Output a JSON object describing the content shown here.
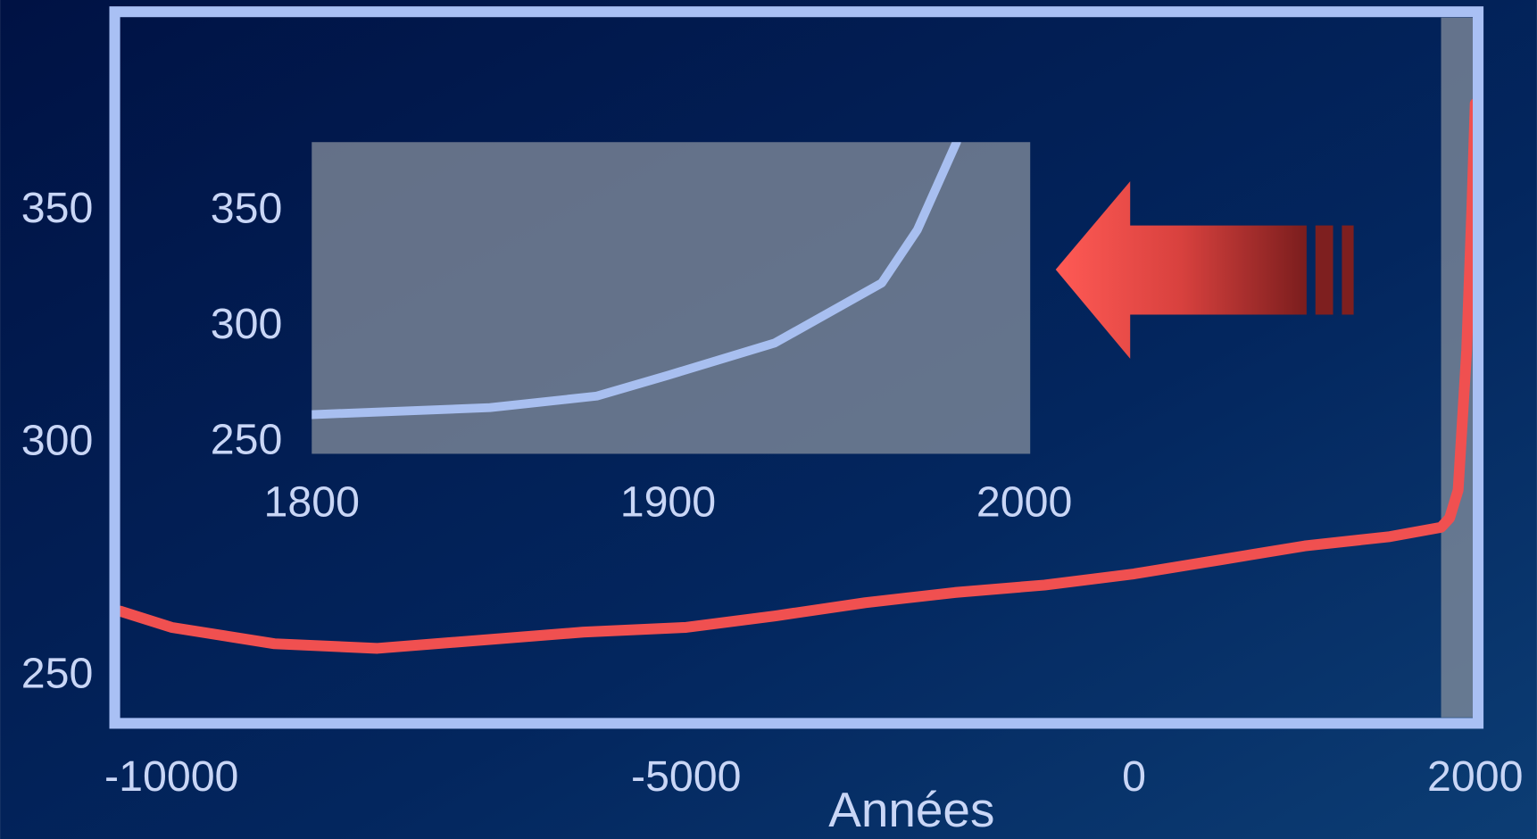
{
  "chart_data": [
    {
      "type": "line",
      "xlabel": "Années",
      "x": [
        -10500,
        -10000,
        -9000,
        -8000,
        -6000,
        -5000,
        -4000,
        -3000,
        -2000,
        -1000,
        0,
        500,
        1000,
        1500,
        1800,
        1850,
        1900,
        1950,
        1980,
        2000
      ],
      "values": [
        264,
        260.5,
        257,
        256,
        259.5,
        260.5,
        263,
        265.8,
        268,
        269.6,
        272,
        275,
        278,
        280,
        282,
        284,
        290,
        320,
        350,
        373
      ],
      "color": "#f05050",
      "xlim": [
        -10500,
        2000
      ],
      "xticks": [
        -10000,
        -5000,
        0,
        2000
      ],
      "ylim": [
        240,
        390
      ],
      "yticks": [
        250,
        300,
        350
      ]
    },
    {
      "type": "line",
      "x": [
        1800,
        1850,
        1880,
        1900,
        1930,
        1960,
        1970,
        1981
      ],
      "values": [
        262,
        265,
        270,
        279,
        293,
        319,
        342,
        380
      ],
      "color": "#a8bff0",
      "xlim": [
        1800,
        2000
      ],
      "xticks": [
        1800,
        1900,
        2000
      ],
      "ylim": [
        245,
        380
      ],
      "yticks": [
        250,
        300,
        350
      ]
    }
  ]
}
